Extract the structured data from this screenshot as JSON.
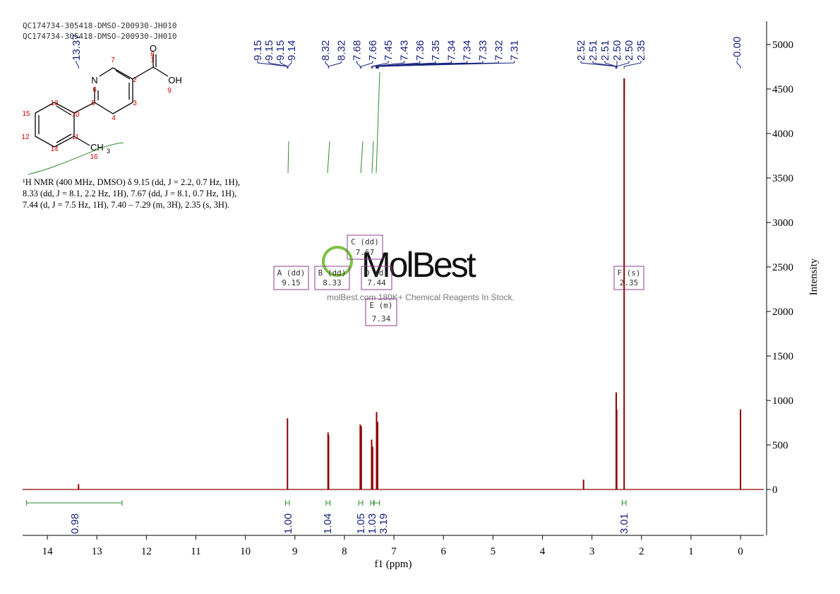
{
  "header": [
    "QC174734-305418-DMSO-200930-JH010",
    "QC174734-305418-DMSO-200930-JH010"
  ],
  "structure": {
    "atoms": {
      "o": "O",
      "oh": "OH",
      "n": "N",
      "methyl": "CH",
      "methyl_sub": "3"
    },
    "numbers": [
      "1",
      "2",
      "3",
      "4",
      "5",
      "6",
      "7",
      "8",
      "9",
      "10",
      "11",
      "12",
      "13",
      "14",
      "15",
      "16"
    ]
  },
  "description": [
    "¹H NMR (400 MHz, DMSO) δ 9.15 (dd, J = 2.2, 0.7 Hz, 1H),",
    "8.33 (dd, J = 8.1, 2.2 Hz, 1H), 7.67 (dd, J = 8.1, 0.7 Hz, 1H),",
    "7.44 (d, J = 7.5 Hz, 1H), 7.40 – 7.29 (m, 3H), 2.35 (s, 3H)."
  ],
  "watermark": {
    "brand": "MolBest",
    "tagline": "molBest.com 180K+ Chemical Reagents In Stock."
  },
  "chart_data": {
    "type": "nmr",
    "x_label": "f1 (ppm)",
    "y_label": "Intensity",
    "xlim": [
      14.5,
      -0.47
    ],
    "ylim": [
      -516,
      5262
    ],
    "xticks": [
      14,
      13,
      12,
      11,
      10,
      9,
      8,
      7,
      6,
      5,
      4,
      3,
      2,
      1,
      0
    ],
    "yticks": [
      0,
      500,
      1000,
      1500,
      2000,
      2500,
      3000,
      3500,
      4000,
      4500,
      5000
    ],
    "color": "#8b0000",
    "peaks": {
      "x": [
        13.37,
        9.15,
        8.33,
        8.32,
        7.68,
        7.66,
        7.45,
        7.43,
        7.35,
        7.33,
        3.17,
        2.51,
        2.5,
        2.35,
        0.0
      ],
      "values": [
        60,
        800,
        640,
        610,
        730,
        710,
        560,
        480,
        870,
        760,
        110,
        1090,
        900,
        4620,
        900
      ]
    },
    "peak_labels": {
      "values": [
        13.37,
        9.15,
        9.15,
        9.15,
        9.14,
        8.32,
        8.32,
        7.68,
        7.66,
        7.45,
        7.43,
        7.36,
        7.35,
        7.34,
        7.34,
        7.33,
        7.32,
        7.31,
        2.52,
        2.51,
        2.51,
        2.5,
        2.5,
        2.35,
        0
      ],
      "value_labels": [
        "13.37",
        "9.15",
        "9.15",
        "9.15",
        "9.14",
        "8.32",
        "8.32",
        "7.68",
        "7.66",
        "7.45",
        "7.43",
        "7.36",
        "7.35",
        "7.34",
        "7.34",
        "7.33",
        "7.32",
        "7.31",
        "2.52",
        "2.51",
        "2.51",
        "2.50",
        "2.50",
        "2.35",
        "-0.00"
      ]
    },
    "integrals": {
      "ranges": [
        [
          14.42,
          12.49
        ],
        [
          9.19,
          9.11
        ],
        [
          8.37,
          8.29
        ],
        [
          7.71,
          7.63
        ],
        [
          7.47,
          7.41
        ],
        [
          7.4,
          7.29
        ],
        [
          2.39,
          2.31
        ]
      ],
      "values": [
        0.98,
        1.0,
        1.04,
        1.05,
        1.03,
        3.19,
        3.01
      ],
      "value_labels": [
        "0.98",
        "1.00",
        "1.04",
        "1.05",
        "1.03",
        "3.19",
        "3.01"
      ]
    },
    "multiplets": [
      {
        "label": "A (dd)",
        "shift": 9.15
      },
      {
        "label": "B (dd)",
        "shift": 8.33
      },
      {
        "label": "C (dd)",
        "shift": 7.67
      },
      {
        "label": "D (d)",
        "shift": 7.44
      },
      {
        "label": "E (m)",
        "shift": 7.34
      },
      {
        "label": "F (s)",
        "shift": 2.35
      }
    ]
  }
}
